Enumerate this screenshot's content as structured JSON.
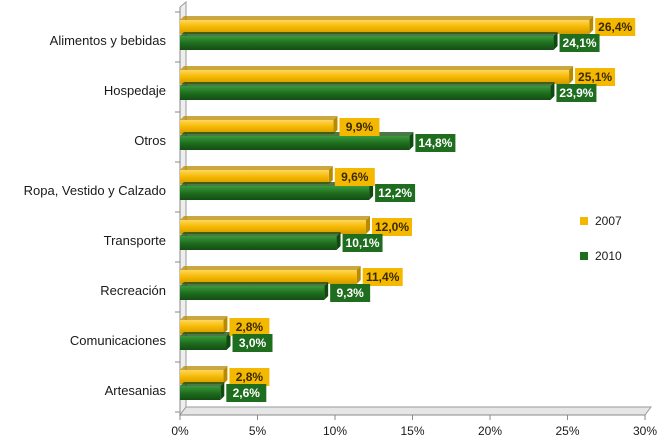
{
  "chart_data": {
    "type": "bar",
    "orientation": "horizontal",
    "categories": [
      "Alimentos y bebidas",
      "Hospedaje",
      "Otros",
      "Ropa, Vestido y Calzado",
      "Transporte",
      "Recreación",
      "Comunicaciones",
      "Artesanias"
    ],
    "series": [
      {
        "name": "2007",
        "color": "#f5b800",
        "values": [
          26.4,
          25.1,
          9.9,
          9.6,
          12.0,
          11.4,
          2.8,
          2.8
        ],
        "labels": [
          "26,4%",
          "25,1%",
          "9,9%",
          "9,6%",
          "12,0%",
          "11,4%",
          "2,8%",
          "2,8%"
        ]
      },
      {
        "name": "2010",
        "color": "#1f6e1f",
        "values": [
          24.1,
          23.9,
          14.8,
          12.2,
          10.1,
          9.3,
          3.0,
          2.6
        ],
        "labels": [
          "24,1%",
          "23,9%",
          "14,8%",
          "12,2%",
          "10,1%",
          "9,3%",
          "3,0%",
          "2,6%"
        ]
      }
    ],
    "xlim": [
      0,
      30
    ],
    "xticks": [
      0,
      5,
      10,
      15,
      20,
      25,
      30
    ],
    "xtick_labels": [
      "0%",
      "5%",
      "10%",
      "15%",
      "20%",
      "25%",
      "30%"
    ],
    "grid": false,
    "legend_position": "right",
    "title": "",
    "xlabel": "",
    "ylabel": ""
  }
}
